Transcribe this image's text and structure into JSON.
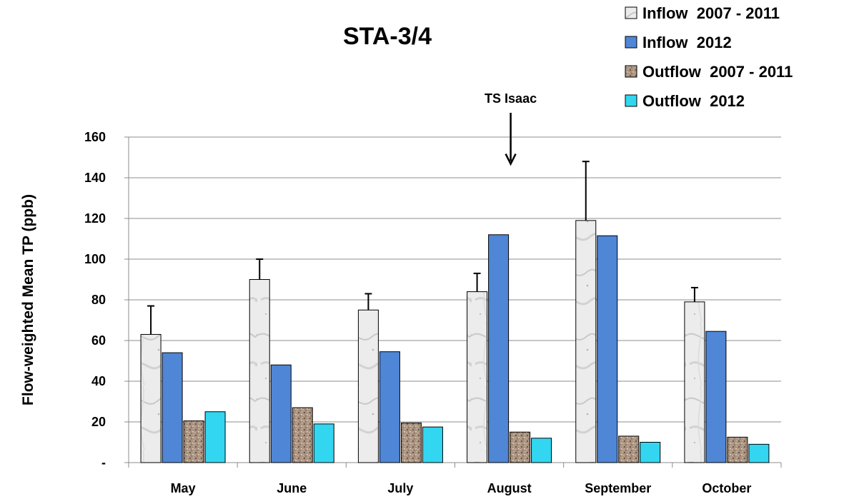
{
  "chart_data": {
    "type": "bar",
    "title": "STA-3/4",
    "xlabel": "",
    "ylabel": "Flow-weighted Mean TP (ppb)",
    "ylim": [
      0,
      160
    ],
    "yticks": [
      {
        "value": 0,
        "label": "-"
      },
      {
        "value": 20,
        "label": "20"
      },
      {
        "value": 40,
        "label": "40"
      },
      {
        "value": 60,
        "label": "60"
      },
      {
        "value": 80,
        "label": "80"
      },
      {
        "value": 100,
        "label": "100"
      },
      {
        "value": 120,
        "label": "120"
      },
      {
        "value": 140,
        "label": "140"
      },
      {
        "value": 160,
        "label": "160"
      }
    ],
    "grid": true,
    "legend_position": "top-right",
    "categories": [
      "May",
      "June",
      "July",
      "August",
      "September",
      "October"
    ],
    "series": [
      {
        "name": "Inflow  2007 - 2011",
        "style": "marble",
        "color": "#e8e8e8",
        "values": [
          63,
          90,
          75,
          84,
          119,
          79
        ],
        "error": [
          14,
          10,
          8,
          9,
          29,
          7
        ]
      },
      {
        "name": "Inflow  2012",
        "style": "solid",
        "color": "#4f86d6",
        "values": [
          54,
          48,
          54.5,
          112,
          111.5,
          64.5
        ]
      },
      {
        "name": "Outflow  2007 - 2011",
        "style": "granite",
        "color": "#a38e7d",
        "values": [
          20.5,
          27,
          19.5,
          15,
          13,
          12.5
        ]
      },
      {
        "name": "Outflow  2012",
        "style": "solid",
        "color": "#33d6f0",
        "values": [
          25,
          19,
          17.5,
          12,
          10,
          9
        ]
      }
    ],
    "annotations": [
      {
        "text": "TS Isaac",
        "category": "August",
        "arrow_from": 168,
        "arrow_to": 144
      }
    ]
  }
}
